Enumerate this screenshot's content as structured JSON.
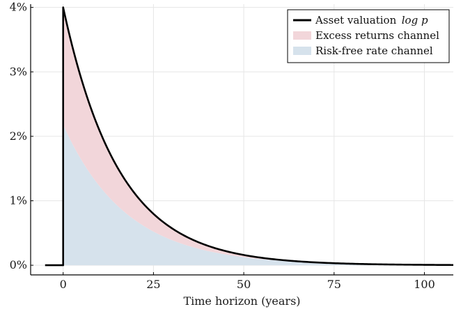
{
  "chart_data": {
    "type": "area",
    "xlabel": "Time horizon (years)",
    "ylabel": "",
    "xlim": [
      -9,
      108
    ],
    "ylim": [
      -0.15,
      4.05
    ],
    "x_ticks": [
      0,
      25,
      50,
      75,
      100
    ],
    "x_tick_labels": [
      "0",
      "25",
      "50",
      "75",
      "100"
    ],
    "y_ticks": [
      0,
      1,
      2,
      3,
      4
    ],
    "y_tick_labels": [
      "0%",
      "1%",
      "2%",
      "3%",
      "4%"
    ],
    "grid": true,
    "legend_position": "top-right",
    "x": [
      -5,
      0,
      5,
      10,
      15,
      20,
      25,
      30,
      35,
      40,
      45,
      50,
      55,
      60,
      65,
      70,
      75,
      80,
      85,
      90,
      95,
      100,
      108
    ],
    "series": [
      {
        "name": "Asset valuation log p",
        "kind": "line",
        "color": "#000000",
        "values": [
          0.0,
          4.0,
          2.9,
          2.1,
          1.52,
          1.1,
          0.8,
          0.58,
          0.42,
          0.31,
          0.22,
          0.17,
          0.12,
          0.09,
          0.065,
          0.05,
          0.04,
          0.03,
          0.02,
          0.015,
          0.01,
          0.01,
          0.005
        ]
      },
      {
        "name": "Excess returns channel",
        "kind": "area",
        "color": "#f2d6da",
        "values": [
          0.0,
          1.82,
          1.26,
          0.87,
          0.6,
          0.42,
          0.3,
          0.21,
          0.15,
          0.11,
          0.08,
          0.06,
          0.04,
          0.03,
          0.025,
          0.02,
          0.015,
          0.01,
          0.008,
          0.006,
          0.004,
          0.003,
          0.002
        ]
      },
      {
        "name": "Risk-free rate channel",
        "kind": "area",
        "color": "#d6e2ec",
        "values": [
          0.0,
          2.18,
          1.64,
          1.23,
          0.92,
          0.68,
          0.5,
          0.37,
          0.27,
          0.2,
          0.14,
          0.11,
          0.08,
          0.06,
          0.04,
          0.03,
          0.025,
          0.02,
          0.012,
          0.009,
          0.006,
          0.007,
          0.003
        ]
      }
    ],
    "legend": [
      {
        "label": "Asset valuation",
        "math": "log p",
        "swatch": "line",
        "color": "#000000"
      },
      {
        "label": "Excess returns channel",
        "swatch": "fill",
        "color": "#f2d6da"
      },
      {
        "label": "Risk-free rate channel",
        "swatch": "fill",
        "color": "#d6e2ec"
      }
    ]
  }
}
